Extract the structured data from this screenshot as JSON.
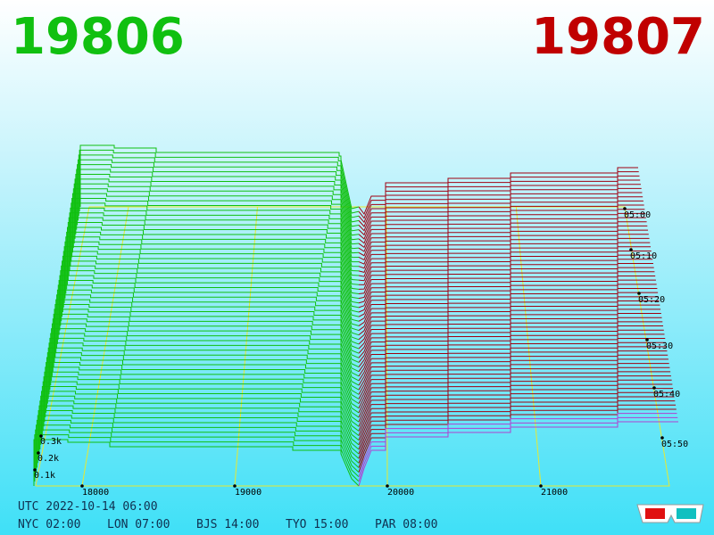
{
  "header": {
    "bid": "19806",
    "ask": "19807"
  },
  "axis": {
    "price_ticks": [
      "18000",
      "19000",
      "20000",
      "21000"
    ],
    "volume_ticks": [
      "0.3k",
      "0.2k",
      "0.1k"
    ],
    "time_ticks": [
      "05:00",
      "05:10",
      "05:20",
      "05:30",
      "05:40",
      "05:50"
    ]
  },
  "footer": {
    "utc": "UTC 2022-10-14 06:00",
    "clocks": [
      "NYC 02:00",
      "LON 07:00",
      "BJS 14:00",
      "TYO 15:00",
      "PAR 08:00"
    ]
  }
}
